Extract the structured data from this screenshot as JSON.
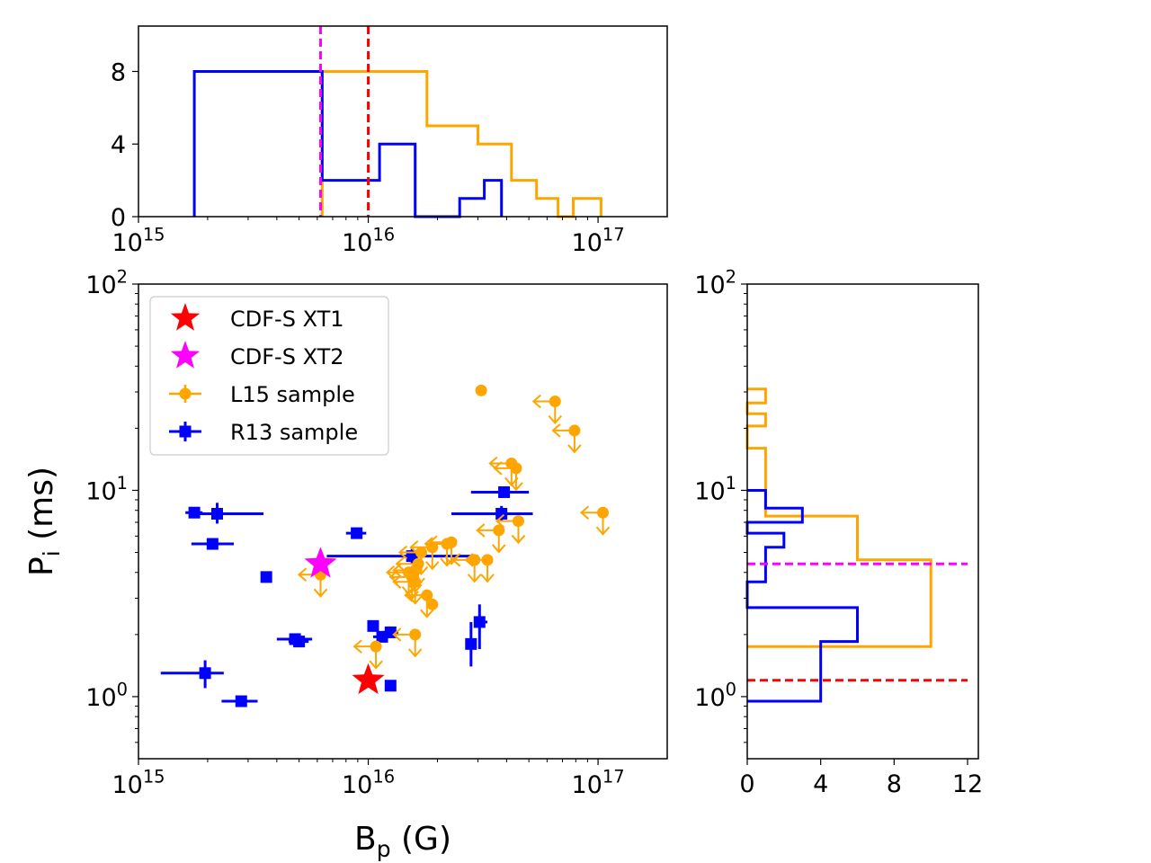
{
  "colors": {
    "xt1": "#ff0000",
    "xt2": "#ff00ff",
    "l15": "#ffa500",
    "r13": "#0000ff",
    "axis": "#000000"
  },
  "chart_data": [
    {
      "id": "main",
      "type": "scatter",
      "xscale": "log",
      "yscale": "log",
      "xlim": [
        1000000000000000.0,
        2e+17
      ],
      "ylim": [
        0.5,
        100
      ],
      "xlabel_main": "B",
      "xlabel_sub": "p",
      "xlabel_unit": " (G)",
      "ylabel_main": "P",
      "ylabel_sub": "i",
      "ylabel_unit": " (ms)",
      "x_ticks": [
        {
          "value": 1000000000000000.0,
          "base": "10",
          "exp": "15"
        },
        {
          "value": 1e+16,
          "base": "10",
          "exp": "16"
        },
        {
          "value": 1e+17,
          "base": "10",
          "exp": "17"
        }
      ],
      "y_ticks": [
        {
          "value": 1,
          "base": "10",
          "exp": "0"
        },
        {
          "value": 10,
          "base": "10",
          "exp": "1"
        },
        {
          "value": 100,
          "base": "10",
          "exp": "2"
        }
      ],
      "legend": {
        "position": "upper-left",
        "entries": [
          {
            "label": "CDF-S XT1",
            "marker": "star",
            "color": "#ff0000"
          },
          {
            "label": "CDF-S XT2",
            "marker": "star",
            "color": "#ff00ff"
          },
          {
            "label": "L15 sample",
            "marker": "circle-errorbar",
            "color": "#ffa500"
          },
          {
            "label": "R13 sample",
            "marker": "square-errorbar",
            "color": "#0000ff"
          }
        ]
      },
      "series": [
        {
          "name": "CDF-S XT1",
          "marker": "star",
          "points": [
            {
              "x": 1e+16,
              "y": 1.2
            }
          ]
        },
        {
          "name": "CDF-S XT2",
          "marker": "star",
          "points": [
            {
              "x": 6200000000000000.0,
              "y": 4.4
            }
          ]
        },
        {
          "name": "L15 sample",
          "marker": "circle",
          "note": "upper limits in B and P",
          "points": [
            {
              "x": 3.1e+16,
              "y": 30.5,
              "limit": false
            },
            {
              "x": 6.5e+16,
              "y": 27.0,
              "limit": true
            },
            {
              "x": 7.9e+16,
              "y": 19.5,
              "limit": true
            },
            {
              "x": 4.2e+16,
              "y": 13.5,
              "limit": true
            },
            {
              "x": 4.4e+16,
              "y": 12.8,
              "limit": true
            },
            {
              "x": 1.05e+17,
              "y": 7.8,
              "limit": true
            },
            {
              "x": 4.5e+16,
              "y": 7.1,
              "limit": true
            },
            {
              "x": 3.7e+16,
              "y": 6.4,
              "limit": true
            },
            {
              "x": 2.3e+16,
              "y": 5.6,
              "limit": true
            },
            {
              "x": 2.2e+16,
              "y": 5.5,
              "limit": true
            },
            {
              "x": 1.9e+16,
              "y": 5.3,
              "limit": true
            },
            {
              "x": 1.7e+16,
              "y": 5.0,
              "limit": true
            },
            {
              "x": 2.9e+16,
              "y": 4.6,
              "limit": true
            },
            {
              "x": 3.3e+16,
              "y": 4.6,
              "limit": true
            },
            {
              "x": 1.65e+16,
              "y": 4.4,
              "limit": true
            },
            {
              "x": 1.6e+16,
              "y": 4.1,
              "limit": true
            },
            {
              "x": 1.5e+16,
              "y": 4.0,
              "limit": true
            },
            {
              "x": 1.55e+16,
              "y": 3.8,
              "limit": true
            },
            {
              "x": 1.6e+16,
              "y": 3.6,
              "limit": true
            },
            {
              "x": 1.8e+16,
              "y": 3.1,
              "limit": true
            },
            {
              "x": 1.9e+16,
              "y": 2.8,
              "limit": false
            },
            {
              "x": 1.6e+16,
              "y": 2.0,
              "limit": true
            },
            {
              "x": 1.08e+16,
              "y": 1.75,
              "limit": true
            },
            {
              "x": 6200000000000000.0,
              "y": 3.9,
              "limit": true
            }
          ]
        },
        {
          "name": "R13 sample",
          "marker": "square",
          "points": [
            {
              "x": 1750000000000000.0,
              "y": 7.8,
              "xerr": [
                1600000000000000.0,
                1900000000000000.0
              ],
              "yerr": [
                7.5,
                8.1
              ]
            },
            {
              "x": 2200000000000000.0,
              "y": 7.7,
              "xerr": [
                1800000000000000.0,
                3500000000000000.0
              ],
              "yerr": [
                6.9,
                8.7
              ]
            },
            {
              "x": 2100000000000000.0,
              "y": 5.5,
              "xerr": [
                1700000000000000.0,
                2600000000000000.0
              ],
              "yerr": [
                5.2,
                5.8
              ]
            },
            {
              "x": 3600000000000000.0,
              "y": 3.8,
              "xerr": [
                3500000000000000.0,
                3700000000000000.0
              ],
              "yerr": [
                3.6,
                4.0
              ]
            },
            {
              "x": 1950000000000000.0,
              "y": 1.3,
              "xerr": [
                1250000000000000.0,
                2350000000000000.0
              ],
              "yerr": [
                1.1,
                1.5
              ]
            },
            {
              "x": 2800000000000000.0,
              "y": 0.95,
              "xerr": [
                2300000000000000.0,
                3300000000000000.0
              ],
              "yerr": [
                0.9,
                1.0
              ]
            },
            {
              "x": 4800000000000000.0,
              "y": 1.9,
              "xerr": [
                4000000000000000.0,
                5700000000000000.0
              ],
              "yerr": [
                1.8,
                2.0
              ]
            },
            {
              "x": 5000000000000000.0,
              "y": 1.85,
              "xerr": [
                4500000000000000.0,
                5500000000000000.0
              ],
              "yerr": [
                1.75,
                1.95
              ]
            },
            {
              "x": 8900000000000000.0,
              "y": 6.2,
              "xerr": [
                8000000000000000.0,
                9800000000000000.0
              ],
              "yerr": [
                5.9,
                6.5
              ]
            },
            {
              "x": 1.55e+16,
              "y": 4.8,
              "xerr": [
                6600000000000000.0,
                3e+16
              ],
              "yerr": [
                4.4,
                5.2
              ]
            },
            {
              "x": 1.05e+16,
              "y": 2.2,
              "xerr": [
                1e+16,
                1.1e+16
              ],
              "yerr": [
                2.1,
                2.3
              ]
            },
            {
              "x": 1.15e+16,
              "y": 1.95,
              "xerr": [
                1.05e+16,
                1.25e+16
              ],
              "yerr": [
                1.85,
                2.05
              ]
            },
            {
              "x": 1.25e+16,
              "y": 2.05,
              "xerr": [
                1.15e+16,
                1.35e+16
              ],
              "yerr": [
                1.95,
                2.15
              ]
            },
            {
              "x": 1.25e+16,
              "y": 1.13,
              "xerr": [
                1.2e+16,
                1.3e+16
              ],
              "yerr": [
                1.08,
                1.18
              ]
            },
            {
              "x": 3.9e+16,
              "y": 9.8,
              "xerr": [
                2.8e+16,
                5e+16
              ],
              "yerr": [
                9.5,
                10.1
              ]
            },
            {
              "x": 3.8e+16,
              "y": 7.7,
              "xerr": [
                2.3e+16,
                5.2e+16
              ],
              "yerr": [
                7.1,
                8.4
              ]
            },
            {
              "x": 2.8e+16,
              "y": 1.8,
              "xerr": [
                2.75e+16,
                2.85e+16
              ],
              "yerr": [
                1.4,
                2.3
              ]
            },
            {
              "x": 3.05e+16,
              "y": 2.3,
              "xerr": [
                2.95e+16,
                3.3e+16
              ],
              "yerr": [
                1.7,
                2.8
              ]
            }
          ]
        }
      ]
    },
    {
      "id": "top-histogram",
      "type": "histogram",
      "xscale": "log",
      "xlim": [
        1000000000000000.0,
        2e+17
      ],
      "ylim": [
        0,
        10.5
      ],
      "x_ticks": [
        {
          "value": 1000000000000000.0,
          "base": "10",
          "exp": "15"
        },
        {
          "value": 1e+16,
          "base": "10",
          "exp": "16"
        },
        {
          "value": 1e+17,
          "base": "10",
          "exp": "17"
        }
      ],
      "y_ticks": [
        {
          "value": 0,
          "label": "0"
        },
        {
          "value": 4,
          "label": "4"
        },
        {
          "value": 8,
          "label": "8"
        }
      ],
      "series": [
        {
          "name": "L15 sample",
          "edges": [
            6300000000000000.0,
            1.8e+16,
            3e+16,
            4.2e+16,
            5.4e+16,
            6.7e+16,
            7.8e+16,
            1.03e+17
          ],
          "counts": [
            8,
            5,
            4,
            2,
            1,
            0,
            1
          ]
        },
        {
          "name": "R13 sample",
          "edges": [
            1750000000000000.0,
            6300000000000000.0,
            1.12e+16,
            1.6e+16,
            2.5e+16,
            3.2e+16,
            3.8e+16
          ],
          "counts": [
            8,
            2,
            4,
            0,
            1,
            2
          ]
        }
      ],
      "vlines": [
        {
          "name": "CDF-S XT2",
          "x": 6200000000000000.0
        },
        {
          "name": "CDF-S XT1",
          "x": 1e+16
        }
      ]
    },
    {
      "id": "right-histogram",
      "type": "histogram",
      "orientation": "horizontal",
      "yscale": "log",
      "ylim": [
        0.5,
        100
      ],
      "xlim": [
        0,
        12
      ],
      "x_ticks": [
        {
          "value": 0,
          "label": "0"
        },
        {
          "value": 4,
          "label": "4"
        },
        {
          "value": 8,
          "label": "8"
        },
        {
          "value": 12,
          "label": "12"
        }
      ],
      "y_ticks": [
        {
          "value": 1,
          "base": "10",
          "exp": "0"
        },
        {
          "value": 10,
          "base": "10",
          "exp": "1"
        },
        {
          "value": 100,
          "base": "10",
          "exp": "2"
        }
      ],
      "series": [
        {
          "name": "L15 sample",
          "edges": [
            1.75,
            4.6,
            7.5,
            16.0,
            20.5,
            23.5,
            26.5,
            31.0
          ],
          "counts": [
            10,
            6,
            1,
            0,
            1,
            0,
            1
          ]
        },
        {
          "name": "R13 sample",
          "edges": [
            0.95,
            1.85,
            2.7,
            3.6,
            5.3,
            6.2,
            7.0,
            8.2,
            9.0,
            10.0
          ],
          "counts": [
            4,
            6,
            0,
            1,
            2,
            0,
            3,
            1,
            1
          ]
        }
      ],
      "hlines": [
        {
          "name": "CDF-S XT2",
          "y": 4.4
        },
        {
          "name": "CDF-S XT1",
          "y": 1.2
        }
      ]
    }
  ]
}
